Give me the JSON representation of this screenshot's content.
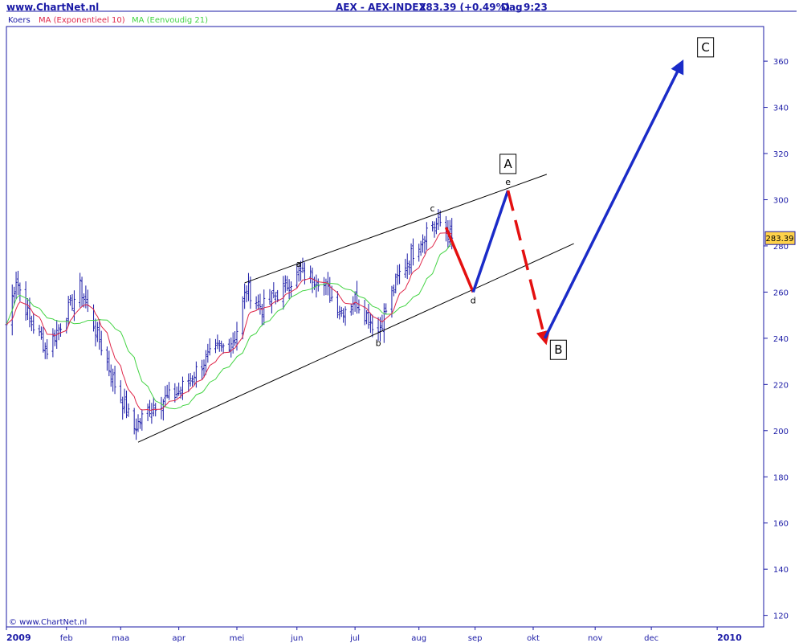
{
  "header": {
    "site": "www.ChartNet.nl",
    "instrument": "AEX - AEX-INDEX",
    "quote": "283.39 (+0.49%)",
    "period": "Dag",
    "time": "9:23"
  },
  "legend": [
    {
      "label": "Koers",
      "color": "#1a1aa6"
    },
    {
      "label": "MA (Exponentieel 10)",
      "color": "#e0284a"
    },
    {
      "label": "MA (Eenvoudig 21)",
      "color": "#44d444"
    }
  ],
  "copyright": "© www.ChartNet.nl",
  "colors": {
    "frame": "#1a1aa6",
    "bars": "#1a1aa6",
    "ema": "#e0284a",
    "sma": "#44d444",
    "trendline": "#000000",
    "wave_up": "#1a2bc8",
    "wave_down": "#e41010",
    "price_tag": "#ffd24a"
  },
  "chart_data": {
    "type": "bar",
    "subtype": "ohlc",
    "title": "AEX - AEX-INDEX",
    "xlabel": "",
    "ylabel": "",
    "ylim": [
      115,
      375
    ],
    "y_ticks": [
      120,
      140,
      160,
      180,
      200,
      220,
      240,
      260,
      280,
      300,
      320,
      340,
      360
    ],
    "grid": false,
    "legend_position": "top-left",
    "x_axis": {
      "start": "2009-01-02",
      "end": "2010-01-28",
      "labels": [
        {
          "date": "2009-01-02",
          "label": "2009",
          "bold": true
        },
        {
          "date": "2009-02-02",
          "label": "feb"
        },
        {
          "date": "2009-03-02",
          "label": "maa"
        },
        {
          "date": "2009-04-01",
          "label": "apr"
        },
        {
          "date": "2009-05-01",
          "label": "mei"
        },
        {
          "date": "2009-06-01",
          "label": "jun"
        },
        {
          "date": "2009-07-01",
          "label": "jul"
        },
        {
          "date": "2009-08-03",
          "label": "aug"
        },
        {
          "date": "2009-09-01",
          "label": "sep"
        },
        {
          "date": "2009-10-01",
          "label": "okt"
        },
        {
          "date": "2009-11-02",
          "label": "nov"
        },
        {
          "date": "2009-12-01",
          "label": "dec"
        },
        {
          "date": "2010-01-04",
          "label": "2010",
          "bold": true
        }
      ]
    },
    "last_price": 283.39,
    "price_anchors": [
      {
        "date": "2009-01-02",
        "value": 246
      },
      {
        "date": "2009-01-07",
        "value": 266
      },
      {
        "date": "2009-01-14",
        "value": 248
      },
      {
        "date": "2009-01-23",
        "value": 235
      },
      {
        "date": "2009-02-09",
        "value": 262
      },
      {
        "date": "2009-02-16",
        "value": 246
      },
      {
        "date": "2009-02-27",
        "value": 220
      },
      {
        "date": "2009-03-09",
        "value": 201
      },
      {
        "date": "2009-03-18",
        "value": 211
      },
      {
        "date": "2009-03-31",
        "value": 216
      },
      {
        "date": "2009-04-15",
        "value": 231
      },
      {
        "date": "2009-04-30",
        "value": 240
      },
      {
        "date": "2009-05-06",
        "value": 262
      },
      {
        "date": "2009-05-14",
        "value": 253
      },
      {
        "date": "2009-06-02",
        "value": 268
      },
      {
        "date": "2009-06-12",
        "value": 266
      },
      {
        "date": "2009-06-24",
        "value": 252
      },
      {
        "date": "2009-07-01",
        "value": 257
      },
      {
        "date": "2009-07-13",
        "value": 243
      },
      {
        "date": "2009-07-24",
        "value": 268
      },
      {
        "date": "2009-08-07",
        "value": 287
      },
      {
        "date": "2009-08-14",
        "value": 290
      },
      {
        "date": "2009-08-20",
        "value": 283.39
      }
    ],
    "series": [
      {
        "name": "MA (Exponentieel 10)",
        "kind": "ema",
        "period": 10
      },
      {
        "name": "MA (Eenvoudig 21)",
        "kind": "sma",
        "period": 21
      }
    ],
    "trendlines": [
      {
        "from": {
          "date": "2009-03-11",
          "value": 195
        },
        "to": {
          "date": "2009-10-22",
          "value": 281
        }
      },
      {
        "from": {
          "date": "2009-05-05",
          "value": 264
        },
        "to": {
          "date": "2009-10-08",
          "value": 311
        }
      }
    ],
    "wave_points": [
      {
        "label": "a",
        "date": "2009-06-02",
        "value": 268.5
      },
      {
        "label": "b",
        "date": "2009-07-13",
        "value": 241.5
      },
      {
        "label": "c",
        "date": "2009-08-10",
        "value": 292.5
      },
      {
        "label": "d",
        "date": "2009-08-31",
        "value": 260
      },
      {
        "label": "e",
        "date": "2009-09-18",
        "value": 304
      }
    ],
    "projection": [
      {
        "from": {
          "date": "2009-08-17",
          "value": 288
        },
        "to": {
          "date": "2009-08-31",
          "value": 260
        },
        "color": "wave_down",
        "dashed": false
      },
      {
        "from": {
          "date": "2009-08-31",
          "value": 260
        },
        "to": {
          "date": "2009-09-18",
          "value": 304
        },
        "color": "wave_up",
        "dashed": false
      },
      {
        "from": {
          "date": "2009-09-18",
          "value": 304
        },
        "to": {
          "date": "2009-10-07",
          "value": 240
        },
        "color": "wave_down",
        "dashed": true,
        "arrow": true
      },
      {
        "from": {
          "date": "2009-10-07",
          "value": 240
        },
        "to": {
          "date": "2009-12-16",
          "value": 358
        },
        "color": "wave_up",
        "dashed": false,
        "arrow": true
      }
    ],
    "box_labels": [
      {
        "label": "A",
        "date": "2009-09-18",
        "value": 315.5
      },
      {
        "label": "B",
        "date": "2009-10-14",
        "value": 235
      },
      {
        "label": "C",
        "date": "2009-12-29",
        "value": 366
      }
    ]
  }
}
